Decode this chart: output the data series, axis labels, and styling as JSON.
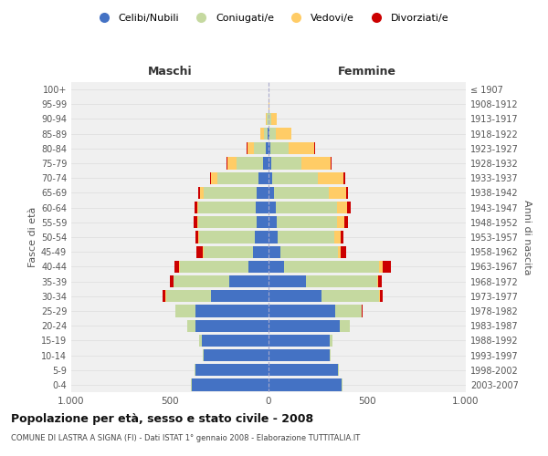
{
  "age_groups": [
    "0-4",
    "5-9",
    "10-14",
    "15-19",
    "20-24",
    "25-29",
    "30-34",
    "35-39",
    "40-44",
    "45-49",
    "50-54",
    "55-59",
    "60-64",
    "65-69",
    "70-74",
    "75-79",
    "80-84",
    "85-89",
    "90-94",
    "95-99",
    "100+"
  ],
  "birth_years": [
    "2003-2007",
    "1998-2002",
    "1993-1997",
    "1988-1992",
    "1983-1987",
    "1978-1982",
    "1973-1977",
    "1968-1972",
    "1963-1967",
    "1958-1962",
    "1953-1957",
    "1948-1952",
    "1943-1947",
    "1938-1942",
    "1933-1937",
    "1928-1932",
    "1923-1927",
    "1918-1922",
    "1913-1917",
    "1908-1912",
    "≤ 1907"
  ],
  "maschi": {
    "celibi": [
      390,
      370,
      330,
      340,
      370,
      370,
      290,
      200,
      100,
      80,
      70,
      60,
      65,
      60,
      50,
      30,
      15,
      5,
      2,
      0,
      0
    ],
    "coniugati": [
      5,
      5,
      5,
      10,
      40,
      100,
      230,
      280,
      350,
      250,
      280,
      295,
      290,
      270,
      210,
      130,
      60,
      20,
      5,
      0,
      0
    ],
    "vedovi": [
      0,
      0,
      0,
      0,
      2,
      2,
      2,
      3,
      5,
      5,
      5,
      5,
      5,
      15,
      30,
      50,
      30,
      15,
      5,
      0,
      0
    ],
    "divorziati": [
      0,
      0,
      0,
      0,
      2,
      2,
      15,
      15,
      20,
      30,
      15,
      20,
      15,
      10,
      5,
      5,
      5,
      0,
      0,
      0,
      0
    ]
  },
  "femmine": {
    "nubili": [
      370,
      350,
      310,
      310,
      360,
      340,
      270,
      190,
      80,
      60,
      45,
      40,
      35,
      30,
      20,
      15,
      10,
      5,
      2,
      0,
      0
    ],
    "coniugate": [
      5,
      5,
      5,
      15,
      50,
      130,
      290,
      360,
      480,
      290,
      290,
      305,
      310,
      275,
      230,
      150,
      90,
      30,
      10,
      2,
      0
    ],
    "vedove": [
      0,
      0,
      0,
      0,
      2,
      3,
      3,
      5,
      20,
      15,
      30,
      40,
      55,
      90,
      130,
      150,
      130,
      80,
      30,
      2,
      0
    ],
    "divorziate": [
      0,
      0,
      0,
      0,
      2,
      2,
      15,
      20,
      40,
      30,
      15,
      20,
      15,
      10,
      10,
      5,
      5,
      0,
      0,
      0,
      0
    ]
  },
  "colors": {
    "celibi": "#4472C4",
    "coniugati": "#C5D9A0",
    "vedovi": "#FFCC66",
    "divorziati": "#CC0000"
  },
  "legend_labels": [
    "Celibi/Nubili",
    "Coniugati/e",
    "Vedovi/e",
    "Divorziati/e"
  ],
  "title": "Popolazione per età, sesso e stato civile - 2008",
  "subtitle": "COMUNE DI LASTRA A SIGNA (FI) - Dati ISTAT 1° gennaio 2008 - Elaborazione TUTTITALIA.IT",
  "xlabel_left": "Maschi",
  "xlabel_right": "Femmine",
  "ylabel_left": "Fasce di età",
  "ylabel_right": "Anni di nascita",
  "xlim": 1000
}
